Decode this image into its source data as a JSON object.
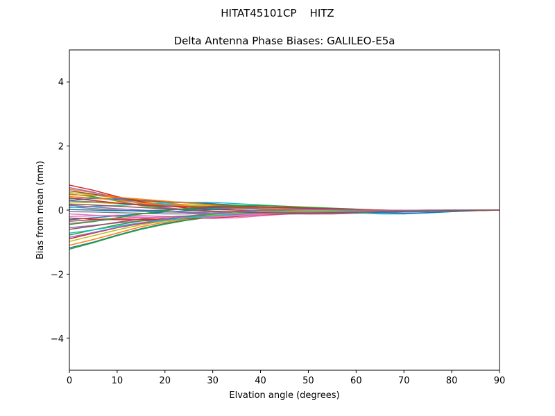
{
  "figure": {
    "suptitle": "HITAT45101CP    HITZ"
  },
  "chart_data": {
    "type": "line",
    "title": "Delta Antenna Phase Biases: GALILEO-E5a",
    "xlabel": "Elvation angle (degrees)",
    "ylabel": "Bias from mean (mm)",
    "xlim": [
      0,
      90
    ],
    "ylim": [
      -5,
      5
    ],
    "xticks": [
      0,
      10,
      20,
      30,
      40,
      50,
      60,
      70,
      80,
      90
    ],
    "xtick_labels": [
      "0",
      "10",
      "20",
      "30",
      "40",
      "50",
      "60",
      "70",
      "80",
      "90"
    ],
    "yticks": [
      -4,
      -2,
      0,
      2,
      4
    ],
    "ytick_labels": [
      "−4",
      "−2",
      "0",
      "2",
      "4"
    ],
    "grid": false,
    "legend": "none",
    "x": [
      0,
      5,
      10,
      15,
      20,
      25,
      30,
      35,
      40,
      45,
      50,
      55,
      60,
      65,
      70,
      75,
      80,
      85,
      90
    ],
    "series": [
      {
        "color": "#1f77b4",
        "values": [
          -1.18,
          -1.0,
          -0.78,
          -0.58,
          -0.42,
          -0.3,
          -0.2,
          -0.12,
          -0.06,
          -0.04,
          -0.03,
          -0.03,
          -0.03,
          -0.02,
          -0.02,
          -0.01,
          0.0,
          0.0,
          0.0
        ]
      },
      {
        "color": "#ff7f0e",
        "values": [
          -1.1,
          -0.92,
          -0.72,
          -0.52,
          -0.38,
          -0.27,
          -0.18,
          -0.11,
          -0.05,
          -0.03,
          -0.02,
          -0.02,
          -0.02,
          -0.02,
          -0.01,
          -0.01,
          0.0,
          0.0,
          0.0
        ]
      },
      {
        "color": "#2ca02c",
        "values": [
          -1.22,
          -1.02,
          -0.8,
          -0.6,
          -0.44,
          -0.31,
          -0.21,
          -0.13,
          -0.07,
          -0.04,
          -0.03,
          -0.03,
          -0.03,
          -0.02,
          -0.02,
          -0.01,
          -0.01,
          0.0,
          0.0
        ]
      },
      {
        "color": "#d62728",
        "values": [
          -0.9,
          -0.72,
          -0.55,
          -0.42,
          -0.33,
          -0.25,
          -0.18,
          -0.12,
          -0.08,
          -0.1,
          -0.12,
          -0.12,
          -0.1,
          -0.08,
          -0.05,
          -0.03,
          -0.02,
          -0.01,
          0.0
        ]
      },
      {
        "color": "#9467bd",
        "values": [
          -0.55,
          -0.48,
          -0.4,
          -0.34,
          -0.3,
          -0.26,
          -0.22,
          -0.18,
          -0.14,
          -0.12,
          -0.12,
          -0.11,
          -0.1,
          -0.08,
          -0.06,
          -0.04,
          -0.02,
          -0.01,
          0.0
        ]
      },
      {
        "color": "#8c564b",
        "values": [
          -0.35,
          -0.3,
          -0.26,
          -0.24,
          -0.22,
          -0.2,
          -0.17,
          -0.14,
          -0.12,
          -0.1,
          -0.09,
          -0.08,
          -0.07,
          -0.06,
          -0.04,
          -0.03,
          -0.02,
          -0.01,
          0.0
        ]
      },
      {
        "color": "#e377c2",
        "values": [
          -0.2,
          -0.18,
          -0.16,
          -0.17,
          -0.2,
          -0.24,
          -0.26,
          -0.24,
          -0.18,
          -0.13,
          -0.1,
          -0.08,
          -0.06,
          -0.05,
          -0.04,
          -0.03,
          -0.02,
          -0.01,
          0.0
        ]
      },
      {
        "color": "#7f7f7f",
        "values": [
          0.1,
          0.05,
          0.0,
          -0.04,
          -0.06,
          -0.07,
          -0.06,
          -0.04,
          -0.02,
          -0.03,
          -0.05,
          -0.07,
          -0.08,
          -0.07,
          -0.05,
          -0.03,
          -0.02,
          -0.01,
          0.0
        ]
      },
      {
        "color": "#bcbd22",
        "values": [
          0.55,
          0.48,
          0.36,
          0.25,
          0.18,
          0.13,
          0.1,
          0.08,
          0.07,
          0.05,
          0.03,
          0.01,
          -0.01,
          -0.03,
          -0.03,
          -0.03,
          -0.02,
          -0.01,
          0.0
        ]
      },
      {
        "color": "#17becf",
        "values": [
          0.35,
          0.4,
          0.32,
          0.22,
          0.18,
          0.16,
          0.14,
          0.11,
          0.08,
          0.04,
          0.0,
          -0.05,
          -0.09,
          -0.12,
          -0.12,
          -0.09,
          -0.05,
          -0.02,
          0.0
        ]
      },
      {
        "color": "#1f77b4",
        "values": [
          0.3,
          0.36,
          0.34,
          0.28,
          0.26,
          0.24,
          0.2,
          0.15,
          0.1,
          0.06,
          0.03,
          0.0,
          -0.04,
          -0.08,
          -0.1,
          -0.08,
          -0.05,
          -0.02,
          0.0
        ]
      },
      {
        "color": "#ff7f0e",
        "values": [
          0.65,
          0.55,
          0.4,
          0.3,
          0.22,
          0.16,
          0.12,
          0.08,
          0.05,
          0.02,
          0.0,
          -0.02,
          -0.03,
          -0.04,
          -0.04,
          -0.03,
          -0.02,
          -0.01,
          0.0
        ]
      },
      {
        "color": "#2ca02c",
        "values": [
          0.5,
          0.42,
          0.28,
          0.14,
          0.06,
          0.02,
          0.05,
          0.08,
          0.09,
          0.07,
          0.04,
          0.01,
          -0.02,
          -0.04,
          -0.05,
          -0.04,
          -0.03,
          -0.01,
          0.0
        ]
      },
      {
        "color": "#d62728",
        "values": [
          0.78,
          0.62,
          0.42,
          0.26,
          0.14,
          0.06,
          0.02,
          0.0,
          -0.02,
          -0.03,
          -0.03,
          -0.02,
          -0.02,
          -0.01,
          -0.01,
          0.0,
          0.0,
          0.0,
          0.0
        ]
      },
      {
        "color": "#9467bd",
        "values": [
          0.7,
          0.56,
          0.36,
          0.2,
          0.08,
          0.0,
          -0.04,
          -0.06,
          -0.06,
          -0.05,
          -0.04,
          -0.03,
          -0.02,
          -0.02,
          -0.01,
          -0.01,
          0.0,
          0.0,
          0.0
        ]
      },
      {
        "color": "#8c564b",
        "values": [
          -0.6,
          -0.5,
          -0.38,
          -0.28,
          -0.22,
          -0.18,
          -0.15,
          -0.13,
          -0.12,
          -0.1,
          -0.08,
          -0.06,
          -0.05,
          -0.04,
          -0.03,
          -0.02,
          -0.01,
          0.0,
          0.0
        ]
      },
      {
        "color": "#e377c2",
        "values": [
          -0.42,
          -0.34,
          -0.28,
          -0.24,
          -0.23,
          -0.22,
          -0.2,
          -0.16,
          -0.12,
          -0.1,
          -0.08,
          -0.06,
          -0.05,
          -0.04,
          -0.03,
          -0.02,
          -0.01,
          0.0,
          0.0
        ]
      },
      {
        "color": "#7f7f7f",
        "values": [
          -0.05,
          -0.06,
          -0.08,
          -0.1,
          -0.12,
          -0.12,
          -0.1,
          -0.06,
          -0.02,
          0.0,
          0.0,
          -0.01,
          -0.02,
          -0.02,
          -0.02,
          -0.01,
          -0.01,
          0.0,
          0.0
        ]
      },
      {
        "color": "#bcbd22",
        "values": [
          0.22,
          0.24,
          0.2,
          0.16,
          0.14,
          0.14,
          0.14,
          0.12,
          0.1,
          0.08,
          0.06,
          0.04,
          0.02,
          0.0,
          -0.02,
          -0.02,
          -0.01,
          0.0,
          0.0
        ]
      },
      {
        "color": "#17becf",
        "values": [
          0.08,
          0.12,
          0.14,
          0.18,
          0.22,
          0.24,
          0.24,
          0.2,
          0.16,
          0.12,
          0.08,
          0.04,
          0.0,
          -0.03,
          -0.05,
          -0.05,
          -0.03,
          -0.01,
          0.0
        ]
      },
      {
        "color": "#1f77b4",
        "values": [
          -0.3,
          -0.24,
          -0.18,
          -0.12,
          -0.06,
          -0.02,
          0.02,
          0.05,
          0.06,
          0.05,
          0.03,
          0.01,
          -0.01,
          -0.03,
          -0.04,
          -0.03,
          -0.02,
          -0.01,
          0.0
        ]
      },
      {
        "color": "#ff7f0e",
        "values": [
          0.42,
          0.38,
          0.3,
          0.22,
          0.16,
          0.12,
          0.08,
          0.05,
          0.03,
          0.01,
          -0.01,
          -0.02,
          -0.03,
          -0.03,
          -0.02,
          -0.02,
          -0.01,
          0.0,
          0.0
        ]
      },
      {
        "color": "#2ca02c",
        "values": [
          -0.78,
          -0.62,
          -0.46,
          -0.34,
          -0.26,
          -0.2,
          -0.14,
          -0.1,
          -0.08,
          -0.08,
          -0.08,
          -0.07,
          -0.06,
          -0.05,
          -0.04,
          -0.03,
          -0.02,
          -0.01,
          0.0
        ]
      },
      {
        "color": "#d62728",
        "values": [
          -0.25,
          -0.28,
          -0.3,
          -0.3,
          -0.28,
          -0.26,
          -0.24,
          -0.2,
          -0.15,
          -0.12,
          -0.1,
          -0.08,
          -0.06,
          -0.05,
          -0.04,
          -0.03,
          -0.02,
          -0.01,
          0.0
        ]
      },
      {
        "color": "#9467bd",
        "values": [
          0.15,
          0.1,
          0.04,
          0.0,
          -0.04,
          -0.08,
          -0.1,
          -0.1,
          -0.08,
          -0.06,
          -0.05,
          -0.05,
          -0.05,
          -0.04,
          -0.03,
          -0.02,
          -0.01,
          0.0,
          0.0
        ]
      },
      {
        "color": "#8c564b",
        "values": [
          0.6,
          0.5,
          0.38,
          0.3,
          0.26,
          0.22,
          0.18,
          0.14,
          0.1,
          0.07,
          0.04,
          0.02,
          0.0,
          -0.02,
          -0.03,
          -0.03,
          -0.02,
          -0.01,
          0.0
        ]
      },
      {
        "color": "#e377c2",
        "values": [
          -0.12,
          -0.16,
          -0.2,
          -0.22,
          -0.24,
          -0.24,
          -0.22,
          -0.18,
          -0.14,
          -0.1,
          -0.07,
          -0.05,
          -0.04,
          -0.03,
          -0.02,
          -0.02,
          -0.01,
          0.0,
          0.0
        ]
      },
      {
        "color": "#7f7f7f",
        "values": [
          0.28,
          0.26,
          0.22,
          0.18,
          0.14,
          0.1,
          0.07,
          0.05,
          0.04,
          0.03,
          0.02,
          0.01,
          0.0,
          -0.01,
          -0.02,
          -0.02,
          -0.01,
          0.0,
          0.0
        ]
      },
      {
        "color": "#bcbd22",
        "values": [
          -0.98,
          -0.8,
          -0.62,
          -0.46,
          -0.34,
          -0.24,
          -0.16,
          -0.1,
          -0.06,
          -0.04,
          -0.03,
          -0.02,
          -0.02,
          -0.02,
          -0.01,
          -0.01,
          0.0,
          0.0,
          0.0
        ]
      },
      {
        "color": "#17becf",
        "values": [
          -0.72,
          -0.62,
          -0.5,
          -0.4,
          -0.32,
          -0.24,
          -0.18,
          -0.12,
          -0.08,
          -0.06,
          -0.05,
          -0.05,
          -0.05,
          -0.04,
          -0.03,
          -0.02,
          -0.01,
          0.0,
          0.0
        ]
      },
      {
        "color": "#1f77b4",
        "values": [
          0.02,
          0.0,
          -0.02,
          -0.02,
          0.0,
          0.04,
          0.08,
          0.1,
          0.1,
          0.08,
          0.05,
          0.02,
          -0.01,
          -0.03,
          -0.04,
          -0.03,
          -0.02,
          -0.01,
          0.0
        ]
      },
      {
        "color": "#ff7f0e",
        "values": [
          0.48,
          0.46,
          0.4,
          0.34,
          0.28,
          0.22,
          0.16,
          0.11,
          0.07,
          0.04,
          0.02,
          0.0,
          -0.02,
          -0.03,
          -0.03,
          -0.02,
          -0.02,
          -0.01,
          0.0
        ]
      },
      {
        "color": "#2ca02c",
        "values": [
          -0.45,
          -0.36,
          -0.24,
          -0.12,
          -0.02,
          0.06,
          0.12,
          0.14,
          0.14,
          0.12,
          0.09,
          0.06,
          0.03,
          0.0,
          -0.02,
          -0.03,
          -0.02,
          -0.01,
          0.0
        ]
      },
      {
        "color": "#d62728",
        "values": [
          0.38,
          0.3,
          0.22,
          0.16,
          0.12,
          0.1,
          0.1,
          0.1,
          0.09,
          0.08,
          0.06,
          0.04,
          0.02,
          0.0,
          -0.01,
          -0.01,
          -0.01,
          0.0,
          0.0
        ]
      },
      {
        "color": "#9467bd",
        "values": [
          -0.85,
          -0.7,
          -0.54,
          -0.4,
          -0.28,
          -0.18,
          -0.1,
          -0.04,
          0.0,
          0.02,
          0.02,
          0.01,
          0.0,
          -0.01,
          -0.01,
          -0.01,
          0.0,
          0.0,
          0.0
        ]
      },
      {
        "color": "#8c564b",
        "values": [
          0.18,
          0.16,
          0.12,
          0.08,
          0.04,
          0.0,
          -0.03,
          -0.06,
          -0.08,
          -0.09,
          -0.09,
          -0.08,
          -0.07,
          -0.05,
          -0.04,
          -0.03,
          -0.02,
          -0.01,
          0.0
        ]
      }
    ]
  }
}
